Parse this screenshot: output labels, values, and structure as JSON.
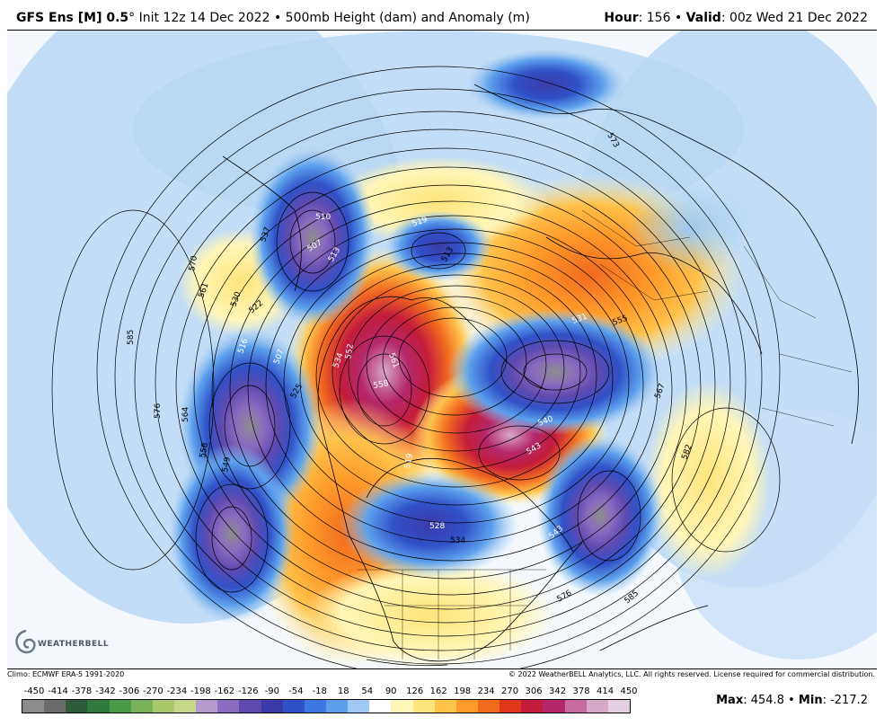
{
  "header": {
    "model": "GFS Ens [M] 0.5",
    "degree": "°",
    "init": "Init 12z 14 Dec 2022",
    "bullet": "•",
    "field": "500mb Height (dam) and Anomaly (m)",
    "hour_label": "Hour",
    "hour_value": ": 156",
    "valid_label": "Valid",
    "valid_value": ": 00z Wed 21 Dec 2022"
  },
  "footer": {
    "climo": "Climo: ECMWF ERA-5 1991-2020",
    "copyright": "© 2022 WeatherBELL Analytics, LLC. All rights reserved. License required for commercial distribution.",
    "logo_text": "WEATHERBELL",
    "max_label": "Max",
    "max_value": ": 454.8",
    "min_label": "Min",
    "min_value": ": -217.2",
    "separator": "•"
  },
  "colorbar": {
    "ticks": [
      "-450",
      "-414",
      "-378",
      "-342",
      "-306",
      "-270",
      "-234",
      "-198",
      "-162",
      "-126",
      "-90",
      "-54",
      "-18",
      "18",
      "54",
      "90",
      "126",
      "162",
      "198",
      "234",
      "270",
      "306",
      "342",
      "378",
      "414",
      "450"
    ],
    "colors": [
      "#8c8c8c",
      "#6b6b6b",
      "#2e5a3c",
      "#2f7a3f",
      "#4b9a4a",
      "#7ab25a",
      "#a8c86a",
      "#c8d88a",
      "#b59ad0",
      "#8a6cc0",
      "#5f4ab0",
      "#3c3aa8",
      "#2f52c8",
      "#3c78e0",
      "#5ca0ec",
      "#9ccaf4",
      "#ffffff",
      "#fff6b8",
      "#ffe47a",
      "#ffc24a",
      "#ff9a2a",
      "#f26a1e",
      "#e0361a",
      "#c41c3c",
      "#b4286a",
      "#c86aa0",
      "#d8a8c8",
      "#e4d0e0"
    ]
  },
  "map": {
    "contour_labels": [
      {
        "text": "573"
      },
      {
        "text": "519"
      },
      {
        "text": "513"
      },
      {
        "text": "510"
      },
      {
        "text": "507"
      },
      {
        "text": "570"
      },
      {
        "text": "561"
      },
      {
        "text": "530"
      },
      {
        "text": "537"
      },
      {
        "text": "522"
      },
      {
        "text": "516"
      },
      {
        "text": "507"
      },
      {
        "text": "585"
      },
      {
        "text": "576"
      },
      {
        "text": "564"
      },
      {
        "text": "558"
      },
      {
        "text": "549"
      },
      {
        "text": "525"
      },
      {
        "text": "534"
      },
      {
        "text": "561"
      },
      {
        "text": "558"
      },
      {
        "text": "552"
      },
      {
        "text": "519"
      },
      {
        "text": "540"
      },
      {
        "text": "543"
      },
      {
        "text": "528"
      },
      {
        "text": "534"
      },
      {
        "text": "543"
      },
      {
        "text": "576"
      },
      {
        "text": "585"
      },
      {
        "text": "582"
      },
      {
        "text": "567"
      },
      {
        "text": "531"
      },
      {
        "text": "555"
      },
      {
        "text": "513"
      }
    ]
  }
}
